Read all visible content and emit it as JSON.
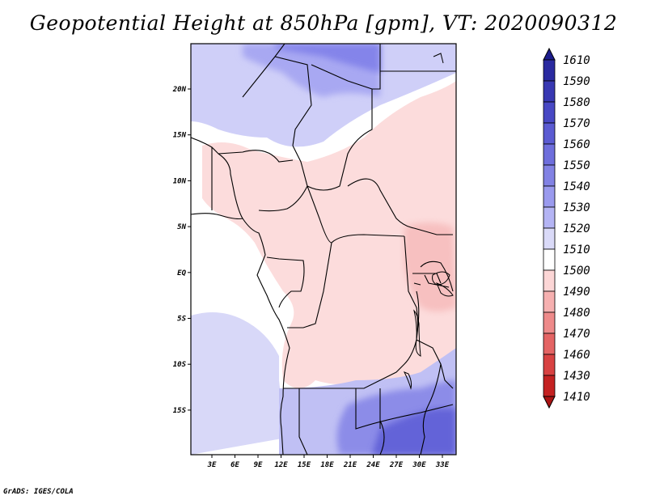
{
  "title": "Geopotential Height at 850hPa [gpm], VT: 2020090312",
  "credit": "GrADS: IGES/COLA",
  "x_ticks": [
    "3E",
    "6E",
    "9E",
    "12E",
    "15E",
    "18E",
    "21E",
    "24E",
    "27E",
    "30E",
    "33E"
  ],
  "y_ticks": [
    "20N",
    "15N",
    "10N",
    "5N",
    "EQ",
    "5S",
    "10S",
    "15S"
  ],
  "colorbar": {
    "labels": [
      "1610",
      "1590",
      "1580",
      "1570",
      "1560",
      "1550",
      "1540",
      "1530",
      "1520",
      "1510",
      "1500",
      "1490",
      "1480",
      "1470",
      "1460",
      "1430",
      "1410"
    ],
    "colors": [
      "#1c1c8c",
      "#2a2aa0",
      "#3838b2",
      "#4848c4",
      "#5b5bd2",
      "#6e6edc",
      "#8282e4",
      "#9a9aee",
      "#b4b4f4",
      "#dadaf8",
      "#ffffff",
      "#fcd6d6",
      "#f6b0b0",
      "#ee8a8a",
      "#e46464",
      "#d84242",
      "#c42222",
      "#aa1414"
    ]
  },
  "colors": {
    "land_border": "#000000",
    "warm": "#fbd4d4",
    "cool": "#c8c8f6",
    "deep": "#5a5ad4"
  }
}
